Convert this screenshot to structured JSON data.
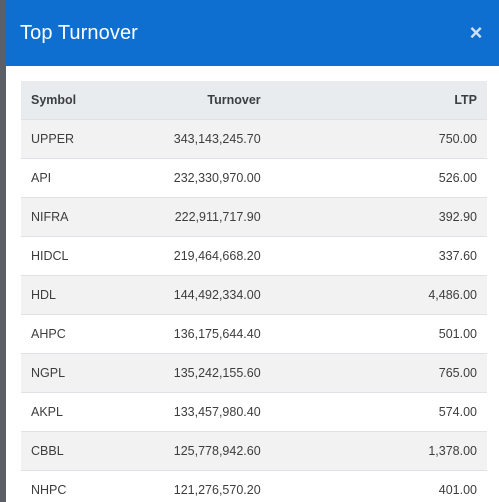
{
  "modal": {
    "title": "Top Turnover",
    "close_label": "×"
  },
  "table": {
    "headers": {
      "symbol": "Symbol",
      "turnover": "Turnover",
      "ltp": "LTP"
    },
    "rows": [
      {
        "symbol": "UPPER",
        "turnover": "343,143,245.70",
        "ltp": "750.00"
      },
      {
        "symbol": "API",
        "turnover": "232,330,970.00",
        "ltp": "526.00"
      },
      {
        "symbol": "NIFRA",
        "turnover": "222,911,717.90",
        "ltp": "392.90"
      },
      {
        "symbol": "HIDCL",
        "turnover": "219,464,668.20",
        "ltp": "337.60"
      },
      {
        "symbol": "HDL",
        "turnover": "144,492,334.00",
        "ltp": "4,486.00"
      },
      {
        "symbol": "AHPC",
        "turnover": "136,175,644.40",
        "ltp": "501.00"
      },
      {
        "symbol": "NGPL",
        "turnover": "135,242,155.60",
        "ltp": "765.00"
      },
      {
        "symbol": "AKPL",
        "turnover": "133,457,980.40",
        "ltp": "574.00"
      },
      {
        "symbol": "CBBL",
        "turnover": "125,778,942.60",
        "ltp": "1,378.00"
      },
      {
        "symbol": "NHPC",
        "turnover": "121,276,570.20",
        "ltp": "401.00"
      }
    ]
  },
  "colors": {
    "header_bg": "#0e6fd0",
    "table_header_bg": "#e9ecef",
    "row_alt_bg": "#f2f2f2"
  }
}
